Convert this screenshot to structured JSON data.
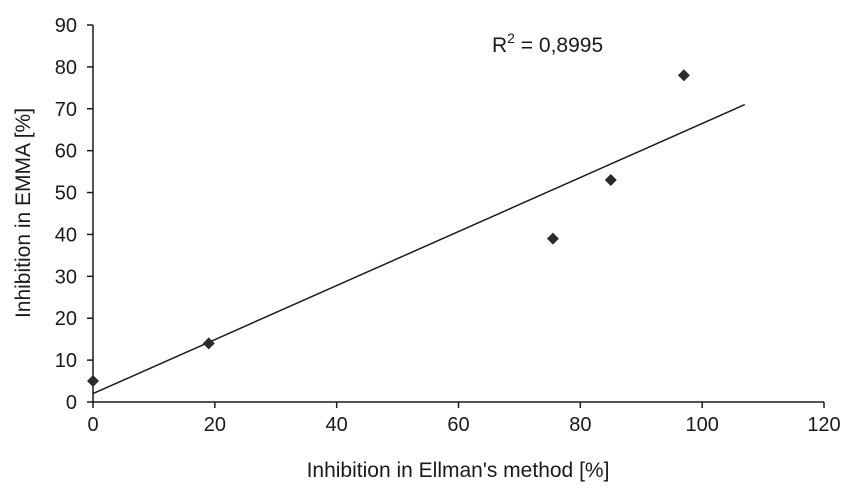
{
  "chart_data": {
    "type": "scatter",
    "xlabel": "Inhibition in Ellman's method [%]",
    "ylabel": "Inhibition in EMMA [%]",
    "xlim": [
      0,
      120
    ],
    "ylim": [
      0,
      90
    ],
    "xticks": [
      0,
      20,
      40,
      60,
      80,
      100,
      120
    ],
    "yticks": [
      0,
      10,
      20,
      30,
      40,
      50,
      60,
      70,
      80,
      90
    ],
    "grid": false,
    "legend": "none",
    "series": [
      {
        "marker": "diamond",
        "color": "#2b2b2b",
        "points": [
          {
            "x": 0,
            "y": 5
          },
          {
            "x": 19,
            "y": 14
          },
          {
            "x": 75.5,
            "y": 39
          },
          {
            "x": 85,
            "y": 53
          },
          {
            "x": 97,
            "y": 78
          }
        ]
      }
    ],
    "trendline": {
      "type": "linear",
      "x_range": [
        0,
        107
      ],
      "y_at_start": 2,
      "y_at_end": 71,
      "color": "#1a1a1a"
    },
    "annotation": {
      "base": "R",
      "superscript": "2",
      "text": " = 0,8995"
    }
  }
}
